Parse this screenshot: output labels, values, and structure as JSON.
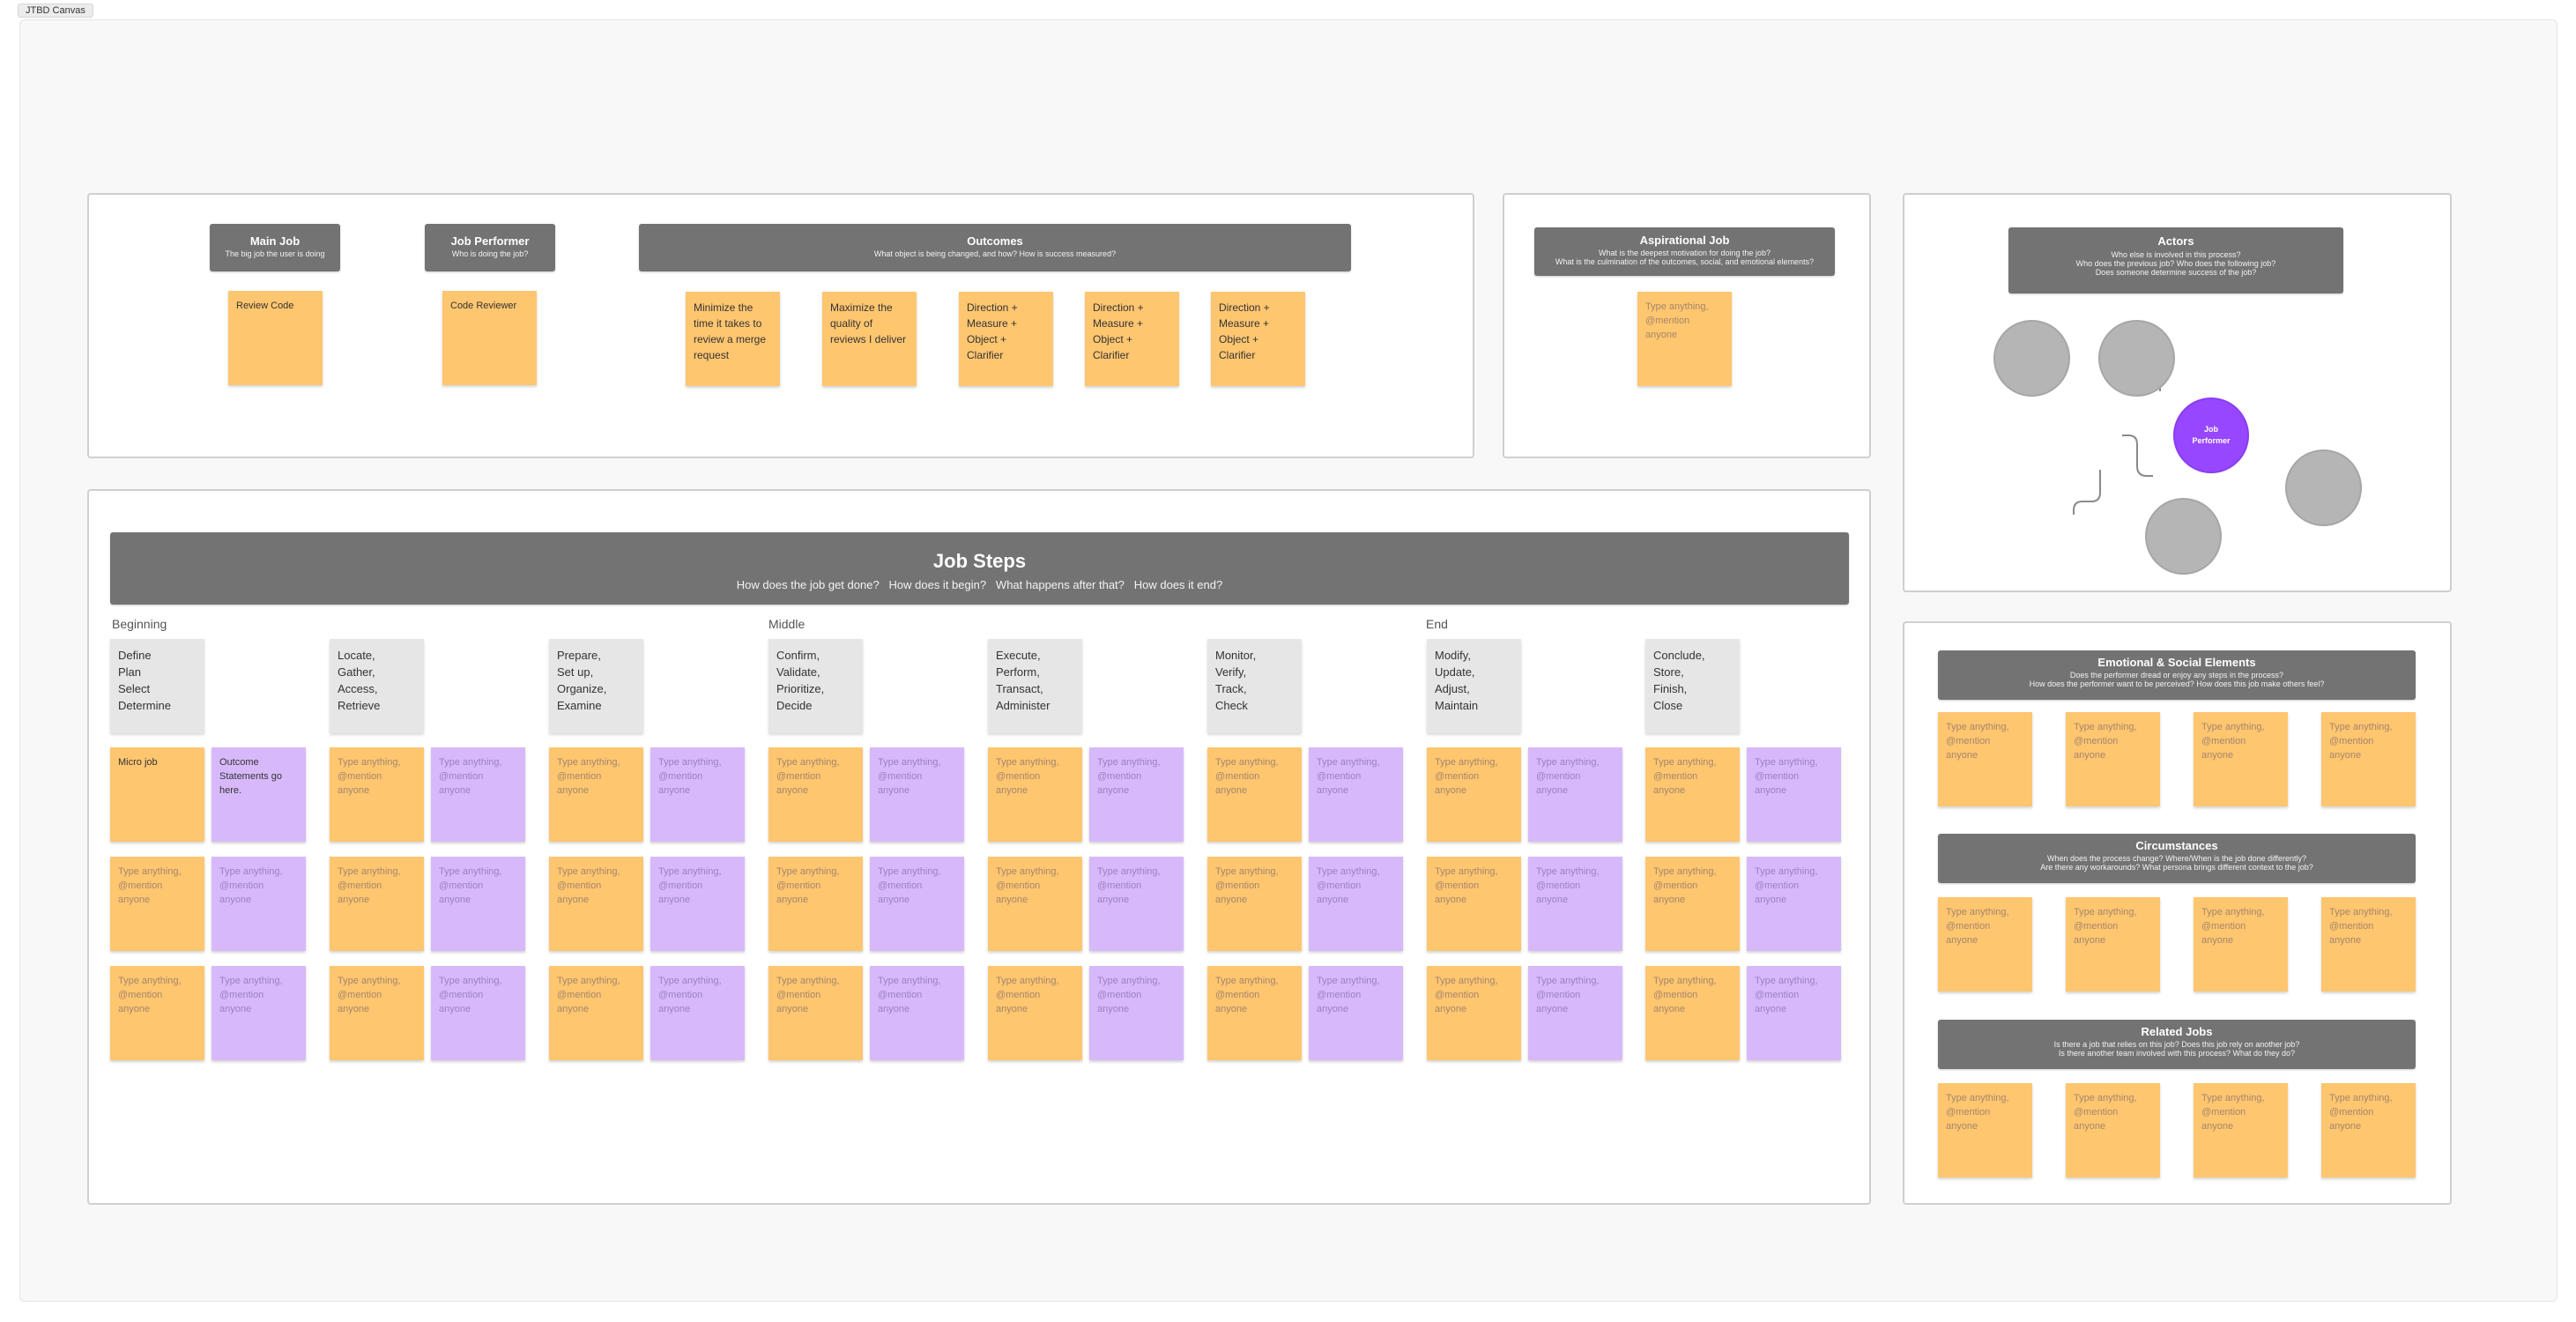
{
  "canvas": {
    "tab_label": "JTBD Canvas"
  },
  "main_job": {
    "title": "Main Job",
    "subtitle": "The big job the user is doing",
    "sticky": "Review Code"
  },
  "job_performer": {
    "title": "Job Performer",
    "subtitle": "Who is doing the job?",
    "sticky": "Code Reviewer"
  },
  "outcomes": {
    "title": "Outcomes",
    "subtitle": "What object is being changed, and how? How is success measured?",
    "stickies": [
      "Minimize the time it takes to review a merge request",
      "Maximize the quality of reviews I deliver",
      "Direction + Measure + Object + Clarifier",
      "Direction + Measure + Object + Clarifier",
      "Direction + Measure + Object + Clarifier"
    ]
  },
  "aspirational_job": {
    "title": "Aspirational Job",
    "subtitle_1": "What is the deepest motivation for doing the job?",
    "subtitle_2": "What is the culmination of the outcomes, social, and emotional elements?",
    "sticky_line_1": "Type anything,",
    "sticky_line_2": "@mention anyone"
  },
  "actors": {
    "title": "Actors",
    "subtitle_1": "Who else is involved in this process?",
    "subtitle_2": "Who does the previous job? Who does the following job?",
    "subtitle_3": "Does someone determine success of the job?",
    "performer_line_1": "Job",
    "performer_line_2": "Performer"
  },
  "job_steps": {
    "title": "Job Steps",
    "subtitle": "How does the job get done?   How does it begin?   What happens after that?   How does it end?",
    "phases": [
      "Beginning",
      "Middle",
      "End"
    ],
    "steps": [
      [
        "Define",
        "Plan",
        "Select",
        "Determine"
      ],
      [
        "Locate,",
        "Gather,",
        "Access,",
        "Retrieve"
      ],
      [
        "Prepare,",
        "Set up,",
        "Organize,",
        "Examine"
      ],
      [
        "Confirm,",
        "Validate,",
        "Prioritize,",
        "Decide"
      ],
      [
        "Execute,",
        "Perform,",
        "Transact,",
        "Administer"
      ],
      [
        "Monitor,",
        "Verify,",
        "Track,",
        "Check"
      ],
      [
        "Modify,",
        "Update,",
        "Adjust,",
        "Maintain"
      ],
      [
        "Conclude,",
        "Store,",
        "Finish,",
        "Close"
      ]
    ],
    "first_micro_job": "Micro job",
    "first_outcome": "Outcome Statements go here.",
    "placeholder_line_1": "Type anything,",
    "placeholder_line_2": "@mention anyone"
  },
  "emotional": {
    "title": "Emotional & Social Elements",
    "subtitle_1": "Does the performer dread or enjoy any steps in the process?",
    "subtitle_2": "How does the performer want to be perceived? How does this job make others feel?"
  },
  "circumstances": {
    "title": "Circumstances",
    "subtitle_1": "When does the process change? Where/When is the job done differently?",
    "subtitle_2": "Are there any workarounds? What persona brings different context to the job?"
  },
  "related_jobs": {
    "title": "Related Jobs",
    "subtitle_1": "Is there a job that relies on this job? Does this job rely on another job?",
    "subtitle_2": "Is there another team involved with this process? What do they do?"
  },
  "placeholder": {
    "line_1": "Type anything,",
    "line_2": "@mention anyone"
  },
  "colors": {
    "sticky_orange": "#ffc670",
    "sticky_purple": "#d7b9fb",
    "header_grey": "#737373",
    "performer_purple": "#9747ff"
  }
}
